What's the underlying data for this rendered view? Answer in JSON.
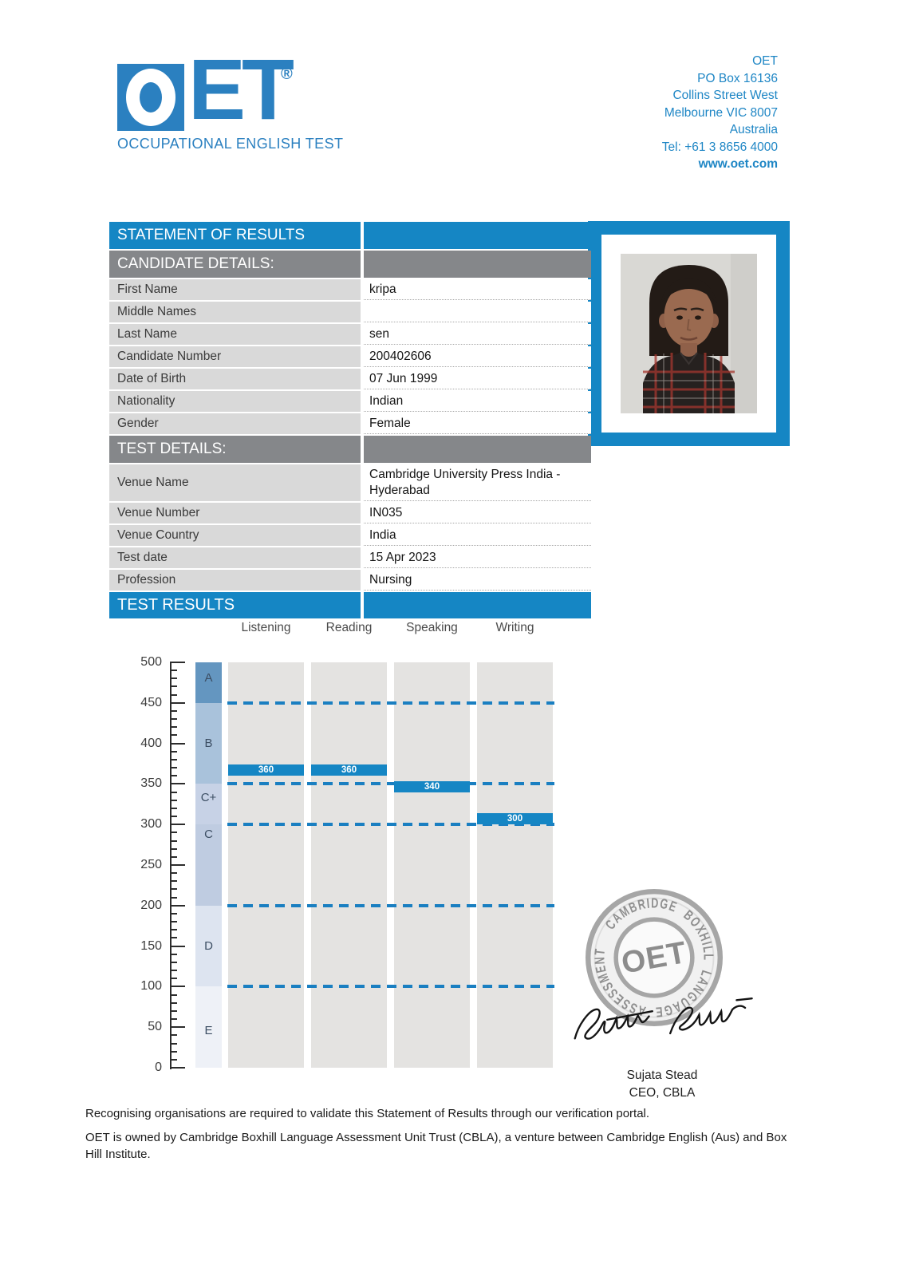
{
  "brand": {
    "logo_text": "OET",
    "logo_et": "ET",
    "registered": "®",
    "subtitle": "OCCUPATIONAL ENGLISH TEST"
  },
  "address": {
    "lines": [
      "OET",
      "PO Box 16136",
      "Collins Street West",
      "Melbourne VIC 8007",
      "Australia",
      "Tel: +61 3 8656 4000"
    ],
    "website": "www.oet.com"
  },
  "statement": {
    "title": "STATEMENT OF RESULTS"
  },
  "candidate_section": {
    "title": "CANDIDATE DETAILS:",
    "rows": [
      {
        "label": "First Name",
        "value": "kripa"
      },
      {
        "label": "Middle Names",
        "value": ""
      },
      {
        "label": "Last Name",
        "value": "sen"
      },
      {
        "label": "Candidate Number",
        "value": "200402606"
      },
      {
        "label": "Date of Birth",
        "value": "07 Jun 1999"
      },
      {
        "label": "Nationality",
        "value": "Indian"
      },
      {
        "label": "Gender",
        "value": "Female"
      }
    ]
  },
  "test_section": {
    "title": "TEST DETAILS:",
    "rows": [
      {
        "label": "Venue Name",
        "value": "Cambridge University Press India - Hyderabad"
      },
      {
        "label": "Venue Number",
        "value": "IN035"
      },
      {
        "label": "Venue Country",
        "value": "India"
      },
      {
        "label": "Test date",
        "value": "15 Apr 2023"
      },
      {
        "label": "Profession",
        "value": "Nursing"
      }
    ]
  },
  "results_section": {
    "title": "TEST RESULTS"
  },
  "chart_data": {
    "type": "bar",
    "categories": [
      "Listening",
      "Reading",
      "Speaking",
      "Writing"
    ],
    "values": [
      360,
      360,
      340,
      300
    ],
    "ylim": [
      0,
      500
    ],
    "yticks": [
      0,
      50,
      100,
      150,
      200,
      250,
      300,
      350,
      400,
      450,
      500
    ],
    "minor_tick_step": 10,
    "grade_bands": [
      {
        "label": "A",
        "from": 450,
        "to": 500,
        "color": "#6496c0"
      },
      {
        "label": "B",
        "from": 350,
        "to": 450,
        "color": "#a9c2db"
      },
      {
        "label": "C+",
        "from": 300,
        "to": 350,
        "color": "#c7d2e6"
      },
      {
        "label": "C",
        "from": 200,
        "to": 300,
        "color": "#bfcce1"
      },
      {
        "label": "D",
        "from": 100,
        "to": 200,
        "color": "#dde4f0"
      },
      {
        "label": "E",
        "from": 0,
        "to": 100,
        "color": "#eef1f7"
      }
    ],
    "dashed_lines": [
      450,
      350,
      300,
      200,
      100
    ],
    "bar_color": "#1586c4",
    "column_color": "#e4e3e1",
    "dash_color": "#1a7fc1",
    "legend": null,
    "grid": "dashed-thresholds-only"
  },
  "seal": {
    "ring_text": "CAMBRIDGE BOXHILL LANGUAGE ASSESSMENT",
    "center_text": "OET"
  },
  "signatory": {
    "name": "Sujata Stead",
    "title": "CEO, CBLA"
  },
  "footer": {
    "line1": "Recognising organisations are required to validate this Statement of Results through our verification portal.",
    "line2": "OET is owned by Cambridge Boxhill Language Assessment Unit Trust (CBLA), a venture between Cambridge English (Aus) and Box Hill Institute."
  }
}
